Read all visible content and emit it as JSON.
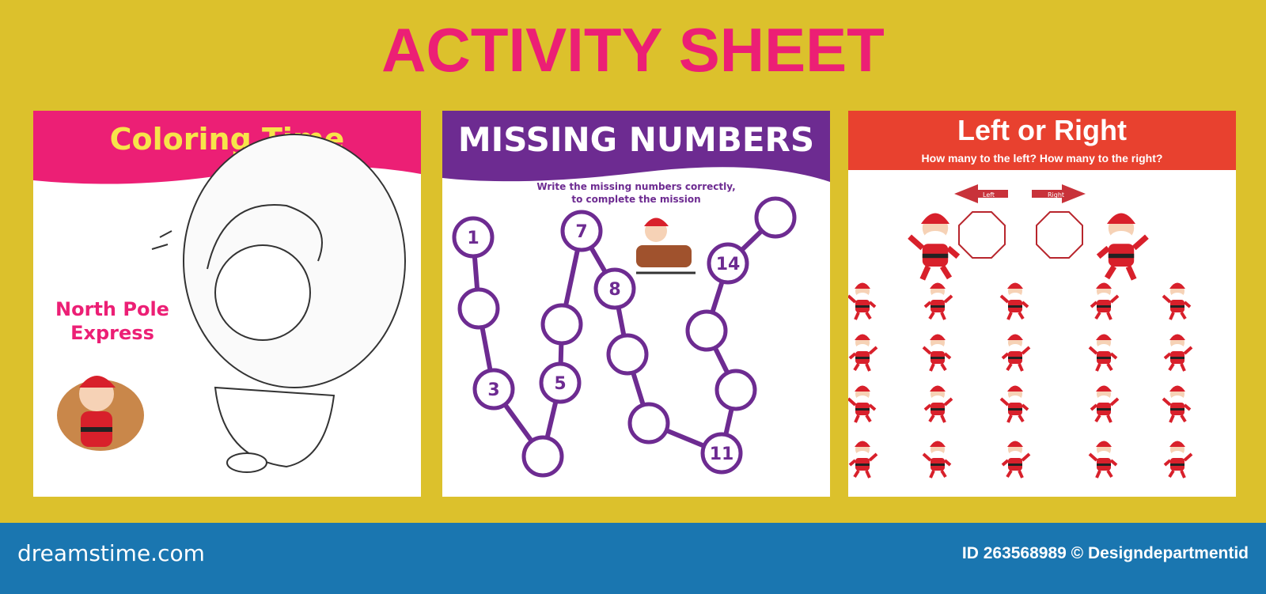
{
  "title": "ACTIVITY SHEET",
  "colors": {
    "background": "#dcc12c",
    "title": "#ec1f75",
    "coloring": "#ec1f75",
    "missing": "#6d2b91",
    "leftright": "#e8412f",
    "footer": "#1a76b0"
  },
  "coloring": {
    "title": "Coloring Time",
    "caption_line1": "North Pole",
    "caption_line2": "Express"
  },
  "missing": {
    "title": "MISSING NUMBERS",
    "instruction_line1": "Write the missing numbers correctly,",
    "instruction_line2": "to complete the mission",
    "circles": [
      "1",
      "",
      "3",
      "",
      "5",
      "",
      "7",
      "8",
      "",
      "",
      "11",
      "",
      "",
      "14",
      ""
    ]
  },
  "leftright": {
    "title": "Left or Right",
    "question": "How many to the left? How many to the right?",
    "left_label": "Left",
    "right_label": "Right",
    "grid_rows": 4,
    "grid_cols": 5
  },
  "footer": {
    "brand": "dreamstime.com",
    "credit": "ID 263568989 © Designdepartmentid"
  }
}
